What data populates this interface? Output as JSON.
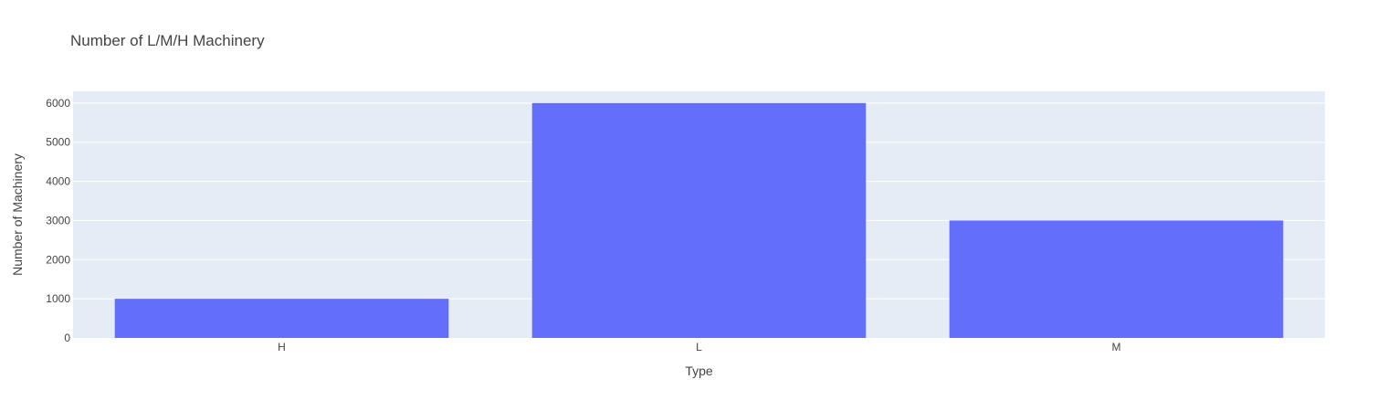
{
  "chart_data": {
    "type": "bar",
    "title": "Number of L/M/H Machinery",
    "xlabel": "Type",
    "ylabel": "Number of Machinery",
    "categories": [
      "H",
      "L",
      "M"
    ],
    "values": [
      1000,
      6000,
      3000
    ],
    "ylim": [
      0,
      6300
    ],
    "yticks": [
      0,
      1000,
      2000,
      3000,
      4000,
      5000,
      6000
    ],
    "ytick_labels": [
      "0",
      "1000",
      "2000",
      "3000",
      "4000",
      "5000",
      "6000"
    ],
    "grid": true,
    "colors": {
      "bar": "#636efa",
      "plot_bg": "#e5ecf6",
      "grid": "#ffffff",
      "text": "#444444"
    }
  }
}
